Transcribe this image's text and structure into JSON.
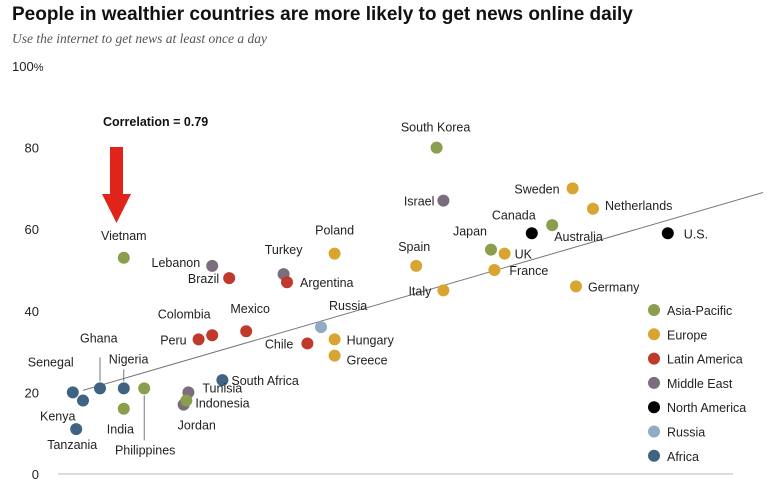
{
  "chart_data": {
    "type": "scatter",
    "title": "People in wealthier countries are more likely to get news online daily",
    "subtitle": "Use the internet to get news at least once a day",
    "ylabel": "Use the internet to get news at least once a day",
    "y_unit_label": "%",
    "ylim": [
      0,
      100
    ],
    "yticks": [
      {
        "value": 0,
        "label": "0"
      },
      {
        "value": 20,
        "label": "20"
      },
      {
        "value": 40,
        "label": "40"
      },
      {
        "value": 60,
        "label": "60"
      },
      {
        "value": 80,
        "label": "80"
      },
      {
        "value": 100,
        "label": "100"
      }
    ],
    "annotation": "Correlation = 0.79",
    "highlight": "Vietnam",
    "colors": {
      "Asia-Pacific": "#8a9e4e",
      "Europe": "#d8a531",
      "Latin America": "#c03a2b",
      "Middle East": "#7a6e7e",
      "North America": "#000000",
      "Russia": "#8fabc6",
      "Africa": "#3f6382"
    },
    "arrow_color": "#e0231b",
    "legend": [
      "Asia-Pacific",
      "Europe",
      "Latin America",
      "Middle East",
      "North America",
      "Russia",
      "Africa"
    ],
    "trendline": {
      "x": [
        1,
        11
      ],
      "y": [
        20.5,
        69
      ]
    },
    "points": [
      {
        "name": "South Korea",
        "region": "Asia-Pacific",
        "x": 6.2,
        "y": 80
      },
      {
        "name": "Israel",
        "region": "Middle East",
        "x": 6.3,
        "y": 67
      },
      {
        "name": "Sweden",
        "region": "Europe",
        "x": 8.2,
        "y": 70
      },
      {
        "name": "Netherlands",
        "region": "Europe",
        "x": 8.5,
        "y": 65
      },
      {
        "name": "Canada",
        "region": "North America",
        "x": 7.6,
        "y": 59
      },
      {
        "name": "Australia",
        "region": "Asia-Pacific",
        "x": 7.9,
        "y": 61
      },
      {
        "name": "U.S.",
        "region": "North America",
        "x": 9.6,
        "y": 59
      },
      {
        "name": "Japan",
        "region": "Asia-Pacific",
        "x": 7.0,
        "y": 55
      },
      {
        "name": "UK",
        "region": "Europe",
        "x": 7.2,
        "y": 54
      },
      {
        "name": "Spain",
        "region": "Europe",
        "x": 5.9,
        "y": 51
      },
      {
        "name": "France",
        "region": "Europe",
        "x": 7.05,
        "y": 50
      },
      {
        "name": "Italy",
        "region": "Europe",
        "x": 6.3,
        "y": 45
      },
      {
        "name": "Germany",
        "region": "Europe",
        "x": 8.25,
        "y": 46
      },
      {
        "name": "Poland",
        "region": "Europe",
        "x": 4.7,
        "y": 54
      },
      {
        "name": "Turkey",
        "region": "Middle East",
        "x": 3.95,
        "y": 49
      },
      {
        "name": "Argentina",
        "region": "Latin America",
        "x": 4.0,
        "y": 47
      },
      {
        "name": "Lebanon",
        "region": "Middle East",
        "x": 2.9,
        "y": 51
      },
      {
        "name": "Brazil",
        "region": "Latin America",
        "x": 3.15,
        "y": 48
      },
      {
        "name": "Vietnam",
        "region": "Asia-Pacific",
        "x": 1.6,
        "y": 53
      },
      {
        "name": "Mexico",
        "region": "Latin America",
        "x": 3.4,
        "y": 35
      },
      {
        "name": "Colombia",
        "region": "Latin America",
        "x": 2.9,
        "y": 34
      },
      {
        "name": "Peru",
        "region": "Latin America",
        "x": 2.7,
        "y": 33
      },
      {
        "name": "Chile",
        "region": "Latin America",
        "x": 4.3,
        "y": 32
      },
      {
        "name": "Russia",
        "region": "Russia",
        "x": 4.5,
        "y": 36
      },
      {
        "name": "Hungary",
        "region": "Europe",
        "x": 4.7,
        "y": 33
      },
      {
        "name": "Greece",
        "region": "Europe",
        "x": 4.7,
        "y": 29
      },
      {
        "name": "South Africa",
        "region": "Africa",
        "x": 3.05,
        "y": 23
      },
      {
        "name": "Tunisia",
        "region": "Middle East",
        "x": 2.55,
        "y": 20
      },
      {
        "name": "Jordan",
        "region": "Middle East",
        "x": 2.48,
        "y": 17
      },
      {
        "name": "Indonesia",
        "region": "Asia-Pacific",
        "x": 2.52,
        "y": 18
      },
      {
        "name": "Philippines",
        "region": "Asia-Pacific",
        "x": 1.9,
        "y": 21
      },
      {
        "name": "India",
        "region": "Asia-Pacific",
        "x": 1.6,
        "y": 16
      },
      {
        "name": "Nigeria",
        "region": "Africa",
        "x": 1.6,
        "y": 21
      },
      {
        "name": "Ghana",
        "region": "Africa",
        "x": 1.25,
        "y": 21
      },
      {
        "name": "Senegal",
        "region": "Africa",
        "x": 0.85,
        "y": 20
      },
      {
        "name": "Kenya",
        "region": "Africa",
        "x": 1.0,
        "y": 18
      },
      {
        "name": "Tanzania",
        "region": "Africa",
        "x": 0.9,
        "y": 11
      }
    ]
  }
}
